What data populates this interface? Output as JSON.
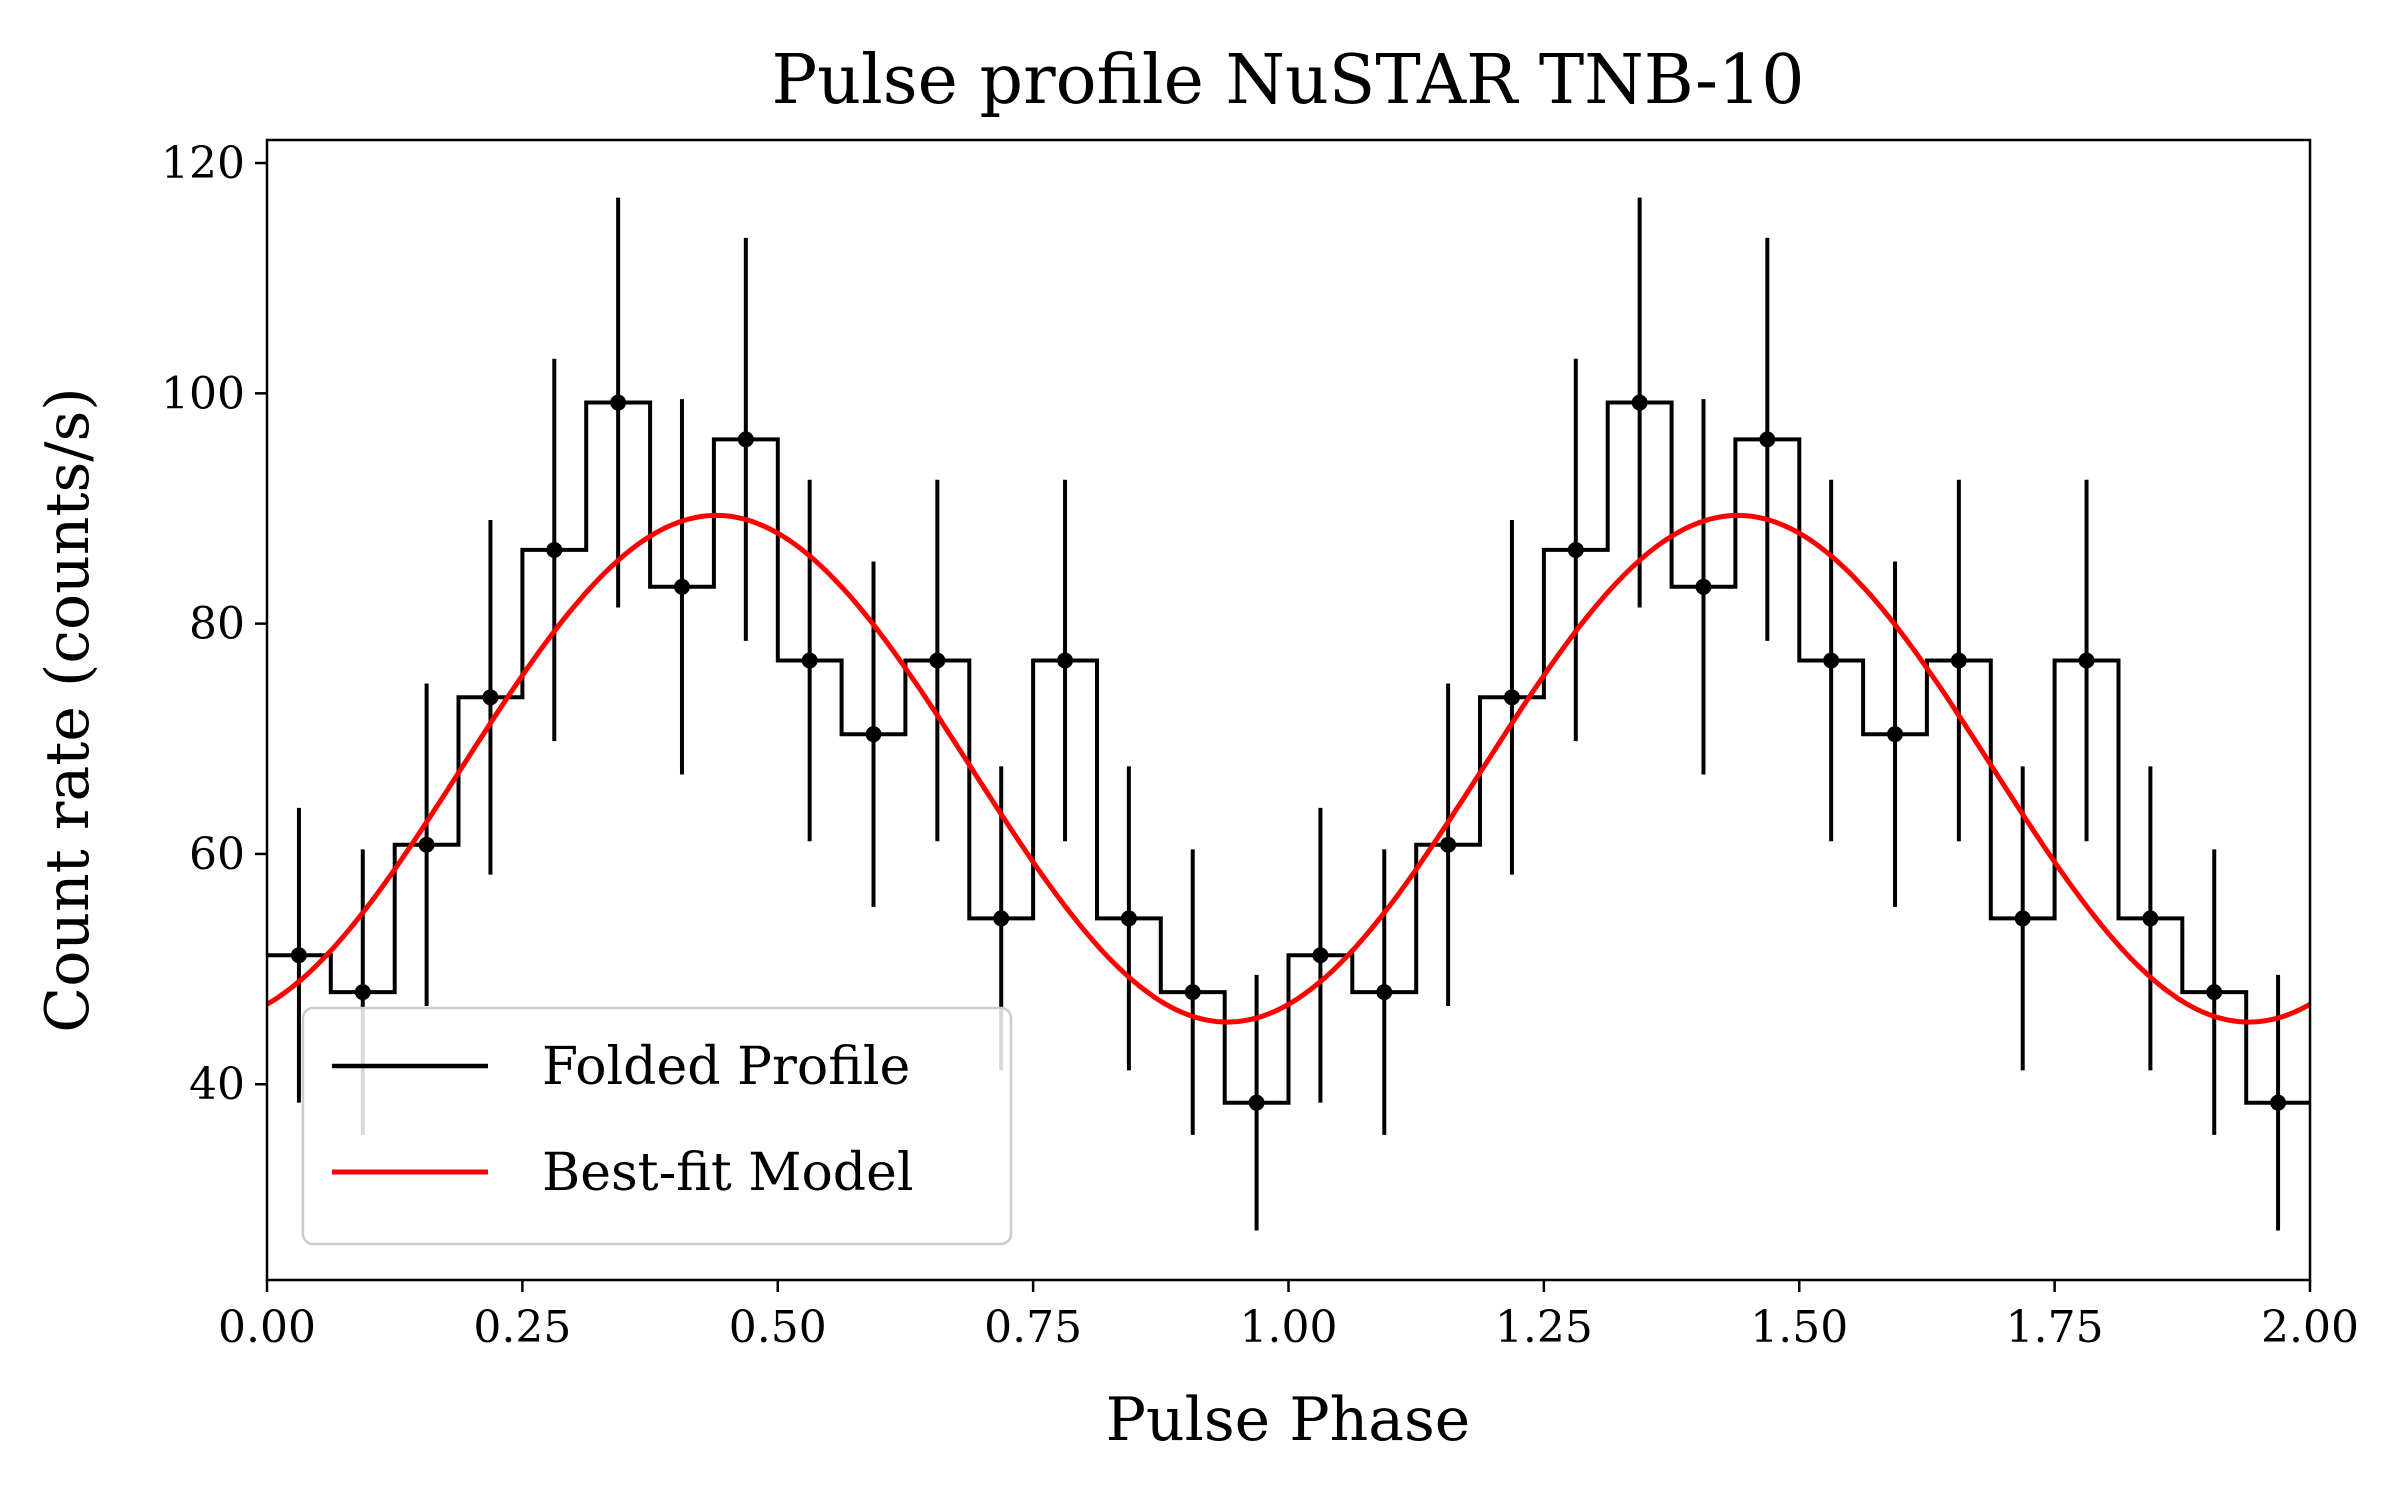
{
  "chart_data": {
    "type": "line",
    "title": "Pulse profile NuSTAR TNB-10",
    "xlabel": "Pulse Phase",
    "ylabel": "Count rate (counts/s)",
    "xlim": [
      0.0,
      2.0
    ],
    "ylim": [
      23,
      122
    ],
    "x_ticks": [
      0.0,
      0.25,
      0.5,
      0.75,
      1.0,
      1.25,
      1.5,
      1.75,
      2.0
    ],
    "x_tick_labels": [
      "0.00",
      "0.25",
      "0.50",
      "0.75",
      "1.00",
      "1.25",
      "1.50",
      "1.75",
      "2.00"
    ],
    "y_ticks": [
      40,
      60,
      80,
      100,
      120
    ],
    "y_tick_labels": [
      "40",
      "60",
      "80",
      "100",
      "120"
    ],
    "grid": false,
    "legend_position": "lower-left",
    "series": [
      {
        "name": "Folded Profile",
        "style": "step-with-errorbars",
        "color": "#000000",
        "bin_width": 0.0625,
        "x": [
          0.03125,
          0.09375,
          0.15625,
          0.21875,
          0.28125,
          0.34375,
          0.40625,
          0.46875,
          0.53125,
          0.59375,
          0.65625,
          0.71875,
          0.78125,
          0.84375,
          0.90625,
          0.96875,
          1.03125,
          1.09375,
          1.15625,
          1.21875,
          1.28125,
          1.34375,
          1.40625,
          1.46875,
          1.53125,
          1.59375,
          1.65625,
          1.71875,
          1.78125,
          1.84375,
          1.90625,
          1.96875
        ],
        "values": [
          51.2,
          48.0,
          60.8,
          73.6,
          86.4,
          99.2,
          83.2,
          96.0,
          76.8,
          70.4,
          76.8,
          54.4,
          76.8,
          54.4,
          48.0,
          38.4,
          51.2,
          48.0,
          60.8,
          73.6,
          86.4,
          99.2,
          83.2,
          96.0,
          76.8,
          70.4,
          76.8,
          54.4,
          76.8,
          54.4,
          48.0,
          38.4
        ],
        "errors": [
          12.8,
          12.4,
          14.0,
          15.4,
          16.6,
          17.8,
          16.3,
          17.5,
          15.7,
          15.0,
          15.7,
          13.2,
          15.7,
          13.2,
          12.4,
          11.1,
          12.8,
          12.4,
          14.0,
          15.4,
          16.6,
          17.8,
          16.3,
          17.5,
          15.7,
          15.0,
          15.7,
          13.2,
          15.7,
          13.2,
          12.4,
          11.1
        ]
      },
      {
        "name": "Best-fit Model",
        "style": "line",
        "color": "#ff0000",
        "model": "sinusoid",
        "offset": 67.4,
        "amplitude": 22.0,
        "peak_phase": 0.44
      }
    ]
  }
}
